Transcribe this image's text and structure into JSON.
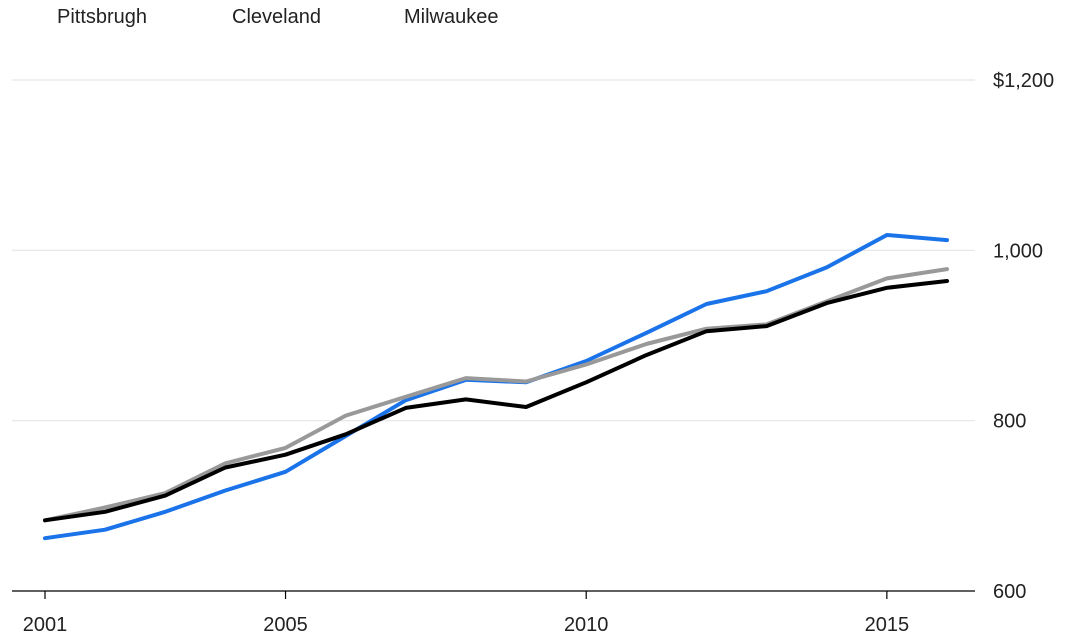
{
  "chart_data": {
    "type": "line",
    "title": "",
    "xlabel": "",
    "ylabel": "",
    "x": [
      2001,
      2002,
      2003,
      2004,
      2005,
      2006,
      2007,
      2008,
      2009,
      2010,
      2011,
      2012,
      2013,
      2014,
      2015,
      2016
    ],
    "xlim": [
      2001,
      2016
    ],
    "ylim": [
      600,
      1200
    ],
    "x_ticks": [
      {
        "value": 2001,
        "label": "2001"
      },
      {
        "value": 2005,
        "label": "2005"
      },
      {
        "value": 2010,
        "label": "2010"
      },
      {
        "value": 2015,
        "label": "2015"
      }
    ],
    "y_ticks": [
      {
        "value": 1200,
        "label": "$1,200"
      },
      {
        "value": 1000,
        "label": "1,000"
      },
      {
        "value": 800,
        "label": "800"
      },
      {
        "value": 600,
        "label": "600"
      }
    ],
    "grid": "horizontal",
    "y_axis_position": "right",
    "legend_position": "top-left",
    "series": [
      {
        "name": "Pittsbrugh",
        "color": "#1a73e8",
        "values": [
          662,
          672,
          693,
          718,
          740,
          782,
          824,
          848,
          845,
          870,
          903,
          937,
          952,
          980,
          1018,
          1012
        ]
      },
      {
        "name": "Cleveland",
        "color": "#000000",
        "values": [
          683,
          693,
          712,
          745,
          760,
          784,
          815,
          825,
          816,
          845,
          877,
          905,
          911,
          938,
          956,
          964
        ]
      },
      {
        "name": "Milwaukee",
        "color": "#999999",
        "values": [
          683,
          698,
          715,
          750,
          768,
          806,
          828,
          850,
          846,
          866,
          890,
          908,
          913,
          940,
          967,
          978
        ]
      }
    ]
  }
}
